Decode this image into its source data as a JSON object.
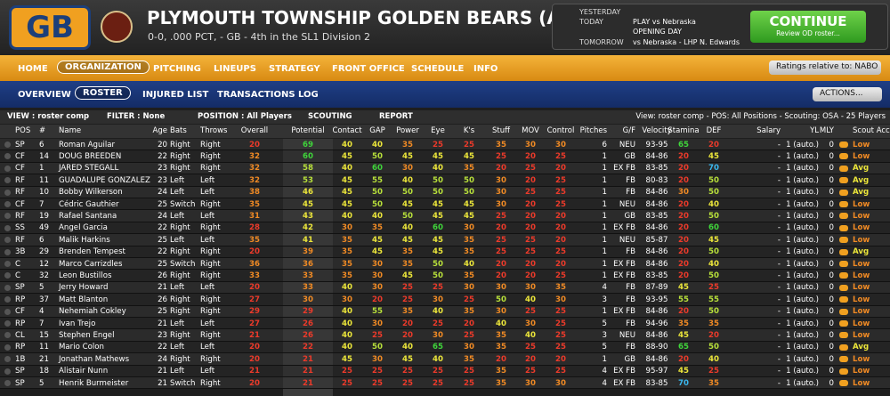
{
  "header": {
    "logo": "GB",
    "title": "PLYMOUTH TOWNSHIP GOLDEN BEARS (AA, MES)",
    "subtitle": "0-0, .000 PCT, - GB - 4th in the SL1 Division 2"
  },
  "schedule": {
    "yesterday": "YESTERDAY",
    "today": "TODAY",
    "today_game": "PLAY vs Nebraska",
    "today_note": "OPENING DAY",
    "tomorrow": "TOMORROW",
    "tomorrow_game": "vs Nebraska - LHP N. Edwards"
  },
  "continue": {
    "label": "CONTINUE",
    "sub": "Review OD roster..."
  },
  "nav": [
    "HOME",
    "ORGANIZATION",
    "PITCHING",
    "LINEUPS",
    "STRATEGY",
    "FRONT OFFICE",
    "SCHEDULE",
    "INFO"
  ],
  "ratings_relative": "Ratings relative to: NABO",
  "subnav": [
    "OVERVIEW",
    "ROSTER",
    "INJURED LIST",
    "TRANSACTIONS LOG"
  ],
  "actions": "ACTIONS...",
  "filters": [
    "VIEW : roster comp",
    "FILTER : None",
    "POSITION : All Players",
    "SCOUTING",
    "REPORT"
  ],
  "view_summary": "View: roster comp - POS: All Positions - Scouting: OSA - 25 Players",
  "table": {
    "columns": [
      "POS",
      "#",
      "Name",
      "Age",
      "Bats",
      "Throws",
      "Overall",
      "Potential",
      "Contact",
      "GAP",
      "Power",
      "Eye",
      "K's",
      "Stuff",
      "MOV",
      "Control",
      "Pitches",
      "G/F",
      "Velocity",
      "Stamina",
      "DEF",
      "Salary",
      "YL",
      "MLY",
      "Scout Acc"
    ],
    "rows": [
      [
        "SP",
        6,
        "Roman Aguilar",
        20,
        "Right",
        "Right",
        20,
        69,
        40,
        40,
        35,
        25,
        25,
        35,
        30,
        30,
        6,
        "NEU",
        "93-95",
        65,
        20,
        "-",
        "1 (auto.)",
        0,
        "Low"
      ],
      [
        "CF",
        14,
        "DOUG BREEDEN",
        22,
        "Right",
        "Right",
        32,
        60,
        45,
        50,
        45,
        45,
        45,
        25,
        20,
        25,
        1,
        "GB",
        "84-86",
        20,
        45,
        "-",
        "1 (auto.)",
        0,
        "Low"
      ],
      [
        "CF",
        1,
        "JARED STEGALL",
        23,
        "Right",
        "Right",
        32,
        58,
        40,
        60,
        30,
        40,
        35,
        20,
        25,
        20,
        1,
        "EX FB",
        "83-85",
        20,
        70,
        "-",
        "1 (auto.)",
        0,
        "Avg"
      ],
      [
        "RF",
        11,
        "GUADALUPE GONZALEZ",
        23,
        "Left",
        "Left",
        32,
        53,
        45,
        55,
        40,
        50,
        50,
        30,
        20,
        25,
        1,
        "FB",
        "80-83",
        20,
        50,
        "-",
        "1 (auto.)",
        0,
        "Avg"
      ],
      [
        "RF",
        10,
        "Bobby Wilkerson",
        24,
        "Left",
        "Left",
        38,
        46,
        45,
        50,
        50,
        50,
        50,
        30,
        25,
        25,
        1,
        "FB",
        "84-86",
        30,
        50,
        "-",
        "1 (auto.)",
        0,
        "Avg"
      ],
      [
        "CF",
        7,
        "Cédric Gauthier",
        25,
        "Switch",
        "Right",
        35,
        45,
        45,
        50,
        45,
        45,
        45,
        30,
        20,
        25,
        1,
        "NEU",
        "84-86",
        20,
        40,
        "-",
        "1 (auto.)",
        0,
        "Low"
      ],
      [
        "RF",
        19,
        "Rafael Santana",
        24,
        "Left",
        "Left",
        31,
        43,
        40,
        40,
        50,
        45,
        45,
        25,
        20,
        20,
        1,
        "GB",
        "83-85",
        20,
        50,
        "-",
        "1 (auto.)",
        0,
        "Low"
      ],
      [
        "SS",
        49,
        "Angel Garcia",
        22,
        "Right",
        "Right",
        28,
        42,
        30,
        35,
        40,
        60,
        30,
        20,
        20,
        20,
        1,
        "EX FB",
        "84-86",
        20,
        60,
        "-",
        "1 (auto.)",
        0,
        "Low"
      ],
      [
        "RF",
        6,
        "Malik Harkins",
        25,
        "Left",
        "Left",
        35,
        41,
        35,
        45,
        45,
        45,
        35,
        25,
        25,
        20,
        1,
        "NEU",
        "85-87",
        20,
        45,
        "-",
        "1 (auto.)",
        0,
        "Low"
      ],
      [
        "3B",
        29,
        "Brenden Tempest",
        22,
        "Right",
        "Right",
        20,
        39,
        35,
        45,
        35,
        45,
        35,
        25,
        25,
        25,
        1,
        "FB",
        "84-86",
        20,
        50,
        "-",
        "1 (auto.)",
        0,
        "Avg"
      ],
      [
        "C",
        12,
        "Marco Carrizdles",
        25,
        "Switch",
        "Right",
        36,
        36,
        35,
        30,
        35,
        50,
        40,
        20,
        20,
        20,
        1,
        "EX FB",
        "84-86",
        20,
        40,
        "-",
        "1 (auto.)",
        0,
        "Low"
      ],
      [
        "C",
        32,
        "Leon Bustillos",
        26,
        "Right",
        "Right",
        33,
        33,
        35,
        30,
        45,
        50,
        35,
        20,
        20,
        25,
        1,
        "EX FB",
        "83-85",
        20,
        50,
        "-",
        "1 (auto.)",
        0,
        "Low"
      ],
      [
        "SP",
        5,
        "Jerry Howard",
        21,
        "Left",
        "Left",
        20,
        33,
        40,
        30,
        25,
        25,
        30,
        30,
        30,
        35,
        4,
        "FB",
        "87-89",
        45,
        25,
        "-",
        "1 (auto.)",
        0,
        "Low"
      ],
      [
        "RP",
        37,
        "Matt Blanton",
        26,
        "Right",
        "Right",
        27,
        30,
        30,
        20,
        25,
        30,
        25,
        50,
        40,
        30,
        3,
        "FB",
        "93-95",
        55,
        55,
        "-",
        "1 (auto.)",
        0,
        "Low"
      ],
      [
        "CF",
        4,
        "Nehemiah Cokley",
        25,
        "Right",
        "Right",
        29,
        29,
        40,
        55,
        35,
        40,
        35,
        30,
        25,
        25,
        1,
        "EX FB",
        "84-86",
        20,
        50,
        "-",
        "1 (auto.)",
        0,
        "Low"
      ],
      [
        "RP",
        7,
        "Ivan Trejo",
        21,
        "Left",
        "Left",
        27,
        26,
        40,
        30,
        20,
        25,
        20,
        40,
        30,
        25,
        5,
        "FB",
        "94-96",
        35,
        35,
        "-",
        "1 (auto.)",
        0,
        "Low"
      ],
      [
        "CL",
        15,
        "Stephen Engel",
        23,
        "Right",
        "Right",
        21,
        26,
        40,
        25,
        20,
        30,
        25,
        35,
        40,
        25,
        3,
        "NEU",
        "84-86",
        45,
        20,
        "-",
        "1 (auto.)",
        0,
        "Low"
      ],
      [
        "RP",
        11,
        "Mario Colon",
        22,
        "Left",
        "Left",
        20,
        22,
        40,
        50,
        40,
        65,
        30,
        35,
        25,
        25,
        5,
        "FB",
        "88-90",
        65,
        50,
        "-",
        "1 (auto.)",
        0,
        "Avg"
      ],
      [
        "1B",
        21,
        "Jonathan Mathews",
        24,
        "Right",
        "Right",
        20,
        21,
        45,
        30,
        45,
        40,
        35,
        20,
        20,
        20,
        1,
        "GB",
        "84-86",
        20,
        40,
        "-",
        "1 (auto.)",
        0,
        "Low"
      ],
      [
        "SP",
        18,
        "Alistair Nunn",
        21,
        "Left",
        "Left",
        21,
        21,
        25,
        25,
        25,
        25,
        25,
        35,
        25,
        25,
        4,
        "EX FB",
        "95-97",
        45,
        25,
        "-",
        "1 (auto.)",
        0,
        "Low"
      ],
      [
        "SP",
        5,
        "Henrik Burmeister",
        21,
        "Switch",
        "Right",
        20,
        21,
        25,
        25,
        25,
        25,
        25,
        35,
        30,
        30,
        4,
        "EX FB",
        "83-85",
        70,
        35,
        "-",
        "1 (auto.)",
        0,
        "Low"
      ]
    ]
  }
}
